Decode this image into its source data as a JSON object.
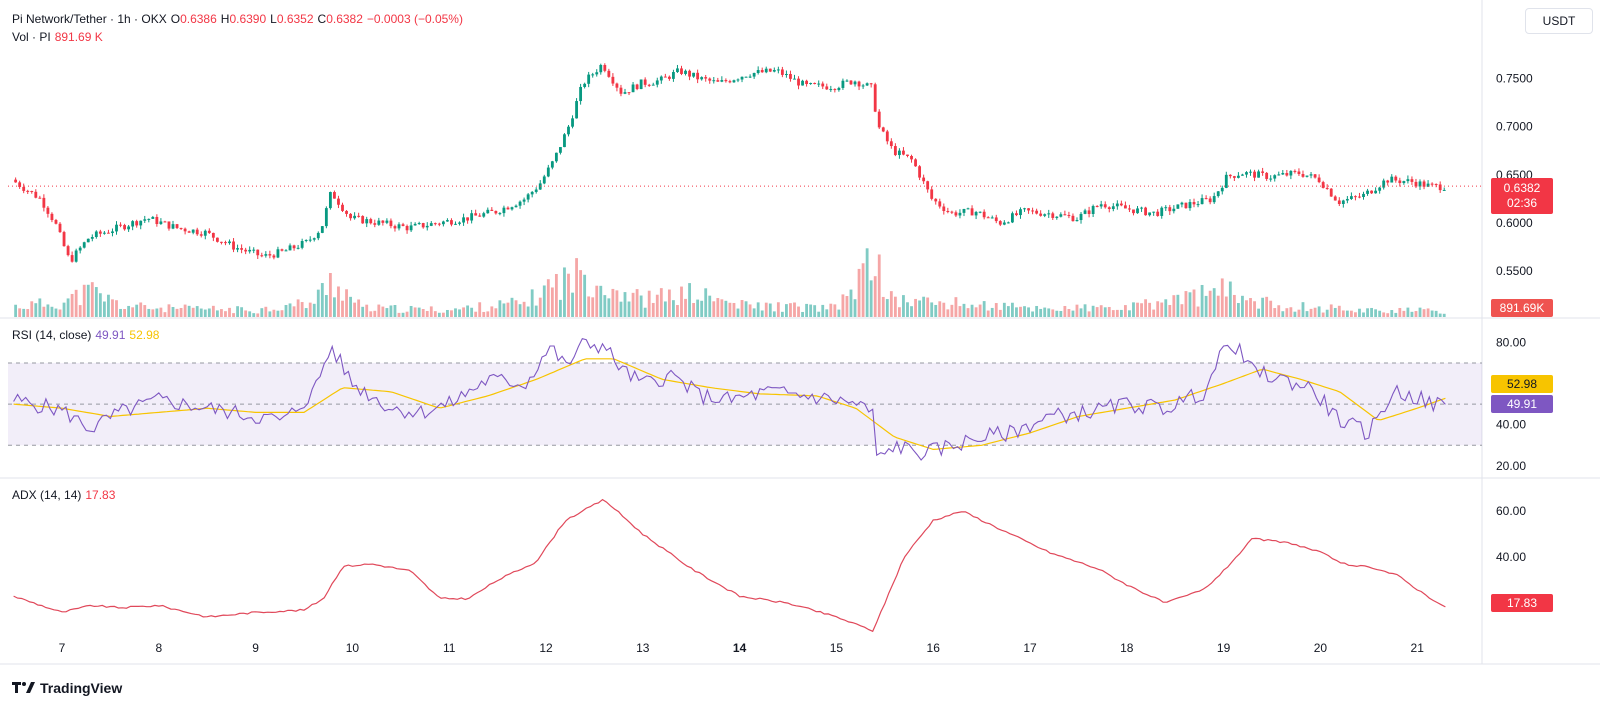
{
  "header": {
    "symbol": "Pi Network/Tether · 1h · OKX",
    "open_label": "O",
    "open": "0.6386",
    "high_label": "H",
    "high": "0.6390",
    "low_label": "L",
    "low": "0.6352",
    "close_label": "C",
    "close": "0.6382",
    "change": "−0.0003 (−0.05%)",
    "vol_label": "Vol · PI",
    "vol_value": "891.69 K"
  },
  "currency_button": "USDT",
  "price_tag": {
    "price": "0.6382",
    "countdown": "02:36"
  },
  "volume_tag": "891.69K",
  "rsi": {
    "label": "RSI (14, close)",
    "value": "49.91",
    "ma_value": "52.98"
  },
  "adx": {
    "label": "ADX (14, 14)",
    "value": "17.83"
  },
  "colors": {
    "up": "#089981",
    "down": "#f23645",
    "rsi": "#7e57c2",
    "rsi_ma": "#f7c400",
    "adx": "#e0485a"
  },
  "brand": "TradingView",
  "chart_data": [
    {
      "type": "candlestick",
      "title": "Pi Network/Tether · 1h · OKX",
      "x_ticks": [
        "7",
        "8",
        "9",
        "10",
        "11",
        "12",
        "13",
        "14",
        "15",
        "16",
        "17",
        "18",
        "19",
        "20",
        "21"
      ],
      "bold_ticks": [
        "14"
      ],
      "y_ticks": [
        "0.5500",
        "0.6000",
        "0.6500",
        "0.7000",
        "0.7500"
      ],
      "ylim": [
        0.52,
        0.79
      ],
      "price_path": [
        [
          6.5,
          0.645
        ],
        [
          6.8,
          0.625
        ],
        [
          6.95,
          0.6
        ],
        [
          7.1,
          0.56
        ],
        [
          7.3,
          0.585
        ],
        [
          7.6,
          0.595
        ],
        [
          7.9,
          0.605
        ],
        [
          8.2,
          0.595
        ],
        [
          8.5,
          0.59
        ],
        [
          8.8,
          0.575
        ],
        [
          9.1,
          0.565
        ],
        [
          9.3,
          0.57
        ],
        [
          9.55,
          0.58
        ],
        [
          9.7,
          0.595
        ],
        [
          9.8,
          0.632
        ],
        [
          10.0,
          0.605
        ],
        [
          10.3,
          0.6
        ],
        [
          10.6,
          0.595
        ],
        [
          10.9,
          0.6
        ],
        [
          11.2,
          0.605
        ],
        [
          11.5,
          0.612
        ],
        [
          11.8,
          0.625
        ],
        [
          11.95,
          0.64
        ],
        [
          12.1,
          0.665
        ],
        [
          12.25,
          0.7
        ],
        [
          12.4,
          0.745
        ],
        [
          12.6,
          0.765
        ],
        [
          12.8,
          0.735
        ],
        [
          13.0,
          0.745
        ],
        [
          13.2,
          0.748
        ],
        [
          13.4,
          0.758
        ],
        [
          13.6,
          0.75
        ],
        [
          13.8,
          0.745
        ],
        [
          14.1,
          0.755
        ],
        [
          14.4,
          0.758
        ],
        [
          14.7,
          0.742
        ],
        [
          15.0,
          0.742
        ],
        [
          15.2,
          0.748
        ],
        [
          15.38,
          0.74
        ],
        [
          15.45,
          0.7
        ],
        [
          15.6,
          0.675
        ],
        [
          15.8,
          0.665
        ],
        [
          16.0,
          0.625
        ],
        [
          16.2,
          0.61
        ],
        [
          16.45,
          0.612
        ],
        [
          16.7,
          0.6
        ],
        [
          16.95,
          0.612
        ],
        [
          17.2,
          0.61
        ],
        [
          17.5,
          0.605
        ],
        [
          17.75,
          0.62
        ],
        [
          18.0,
          0.615
        ],
        [
          18.3,
          0.61
        ],
        [
          18.6,
          0.618
        ],
        [
          18.9,
          0.625
        ],
        [
          19.05,
          0.648
        ],
        [
          19.2,
          0.652
        ],
        [
          19.5,
          0.648
        ],
        [
          19.8,
          0.652
        ],
        [
          20.0,
          0.645
        ],
        [
          20.2,
          0.622
        ],
        [
          20.45,
          0.628
        ],
        [
          20.7,
          0.645
        ],
        [
          20.95,
          0.643
        ],
        [
          21.15,
          0.638
        ],
        [
          21.3,
          0.638
        ]
      ],
      "volume_path": [
        [
          6.5,
          0.18
        ],
        [
          7.0,
          0.25
        ],
        [
          7.3,
          0.45
        ],
        [
          7.6,
          0.2
        ],
        [
          8.0,
          0.15
        ],
        [
          9.0,
          0.12
        ],
        [
          9.6,
          0.25
        ],
        [
          9.78,
          0.65
        ],
        [
          10.1,
          0.15
        ],
        [
          11.0,
          0.12
        ],
        [
          11.8,
          0.25
        ],
        [
          12.05,
          0.55
        ],
        [
          12.4,
          0.75
        ],
        [
          12.6,
          0.55
        ],
        [
          13.0,
          0.3
        ],
        [
          13.5,
          0.4
        ],
        [
          14.0,
          0.2
        ],
        [
          15.0,
          0.15
        ],
        [
          15.4,
          1.0
        ],
        [
          15.55,
          0.3
        ],
        [
          16.0,
          0.25
        ],
        [
          17.0,
          0.15
        ],
        [
          18.0,
          0.15
        ],
        [
          19.0,
          0.45
        ],
        [
          19.5,
          0.2
        ],
        [
          20.5,
          0.12
        ],
        [
          21.3,
          0.1
        ]
      ],
      "last_price": 0.6382
    },
    {
      "type": "line",
      "title": "RSI (14, close)",
      "y_ticks": [
        "20.00",
        "40.00",
        "80.00"
      ],
      "ylim": [
        18,
        86
      ],
      "bands": {
        "upper": 70,
        "middle": 50,
        "lower": 30
      },
      "series": [
        {
          "name": "RSI",
          "values": [
            [
              6.5,
              52
            ],
            [
              7.0,
              47
            ],
            [
              7.3,
              38
            ],
            [
              7.6,
              46
            ],
            [
              8.0,
              52
            ],
            [
              8.5,
              48
            ],
            [
              9.0,
              44
            ],
            [
              9.3,
              42
            ],
            [
              9.6,
              56
            ],
            [
              9.78,
              78
            ],
            [
              10.0,
              60
            ],
            [
              10.4,
              48
            ],
            [
              10.7,
              46
            ],
            [
              11.0,
              50
            ],
            [
              11.4,
              62
            ],
            [
              11.8,
              60
            ],
            [
              11.95,
              72
            ],
            [
              12.05,
              78
            ],
            [
              12.2,
              68
            ],
            [
              12.4,
              80
            ],
            [
              12.6,
              78
            ],
            [
              12.8,
              66
            ],
            [
              13.0,
              60
            ],
            [
              13.3,
              64
            ],
            [
              13.6,
              54
            ],
            [
              13.9,
              52
            ],
            [
              14.3,
              56
            ],
            [
              14.7,
              54
            ],
            [
              15.0,
              52
            ],
            [
              15.2,
              50
            ],
            [
              15.38,
              46
            ],
            [
              15.42,
              22
            ],
            [
              15.6,
              30
            ],
            [
              15.9,
              26
            ],
            [
              16.2,
              30
            ],
            [
              16.5,
              34
            ],
            [
              16.8,
              36
            ],
            [
              17.2,
              44
            ],
            [
              17.6,
              46
            ],
            [
              18.0,
              50
            ],
            [
              18.4,
              48
            ],
            [
              18.8,
              56
            ],
            [
              19.0,
              76
            ],
            [
              19.1,
              80
            ],
            [
              19.3,
              66
            ],
            [
              19.6,
              62
            ],
            [
              19.9,
              58
            ],
            [
              20.2,
              42
            ],
            [
              20.5,
              36
            ],
            [
              20.75,
              56
            ],
            [
              20.95,
              54
            ],
            [
              21.15,
              50
            ],
            [
              21.3,
              49.91
            ]
          ]
        },
        {
          "name": "RSI-based MA",
          "values": [
            [
              6.5,
              50
            ],
            [
              7.0,
              48
            ],
            [
              7.5,
              44
            ],
            [
              8.0,
              46
            ],
            [
              8.5,
              48
            ],
            [
              9.0,
              46
            ],
            [
              9.5,
              46
            ],
            [
              9.9,
              58
            ],
            [
              10.4,
              56
            ],
            [
              10.9,
              48
            ],
            [
              11.4,
              54
            ],
            [
              11.9,
              62
            ],
            [
              12.4,
              72
            ],
            [
              12.7,
              72
            ],
            [
              13.2,
              62
            ],
            [
              13.7,
              58
            ],
            [
              14.2,
              55
            ],
            [
              14.8,
              54
            ],
            [
              15.2,
              48
            ],
            [
              15.6,
              34
            ],
            [
              16.0,
              28
            ],
            [
              16.5,
              30
            ],
            [
              17.0,
              36
            ],
            [
              17.5,
              44
            ],
            [
              18.0,
              48
            ],
            [
              18.5,
              52
            ],
            [
              19.0,
              60
            ],
            [
              19.4,
              67
            ],
            [
              19.8,
              62
            ],
            [
              20.2,
              56
            ],
            [
              20.6,
              42
            ],
            [
              21.0,
              48
            ],
            [
              21.3,
              52.98
            ]
          ]
        }
      ]
    },
    {
      "type": "line",
      "title": "ADX (14, 14)",
      "y_ticks": [
        "40.00",
        "60.00"
      ],
      "ylim": [
        4,
        70
      ],
      "series": [
        {
          "name": "ADX",
          "values": [
            [
              6.5,
              23
            ],
            [
              7.0,
              16
            ],
            [
              7.3,
              19
            ],
            [
              7.6,
              18
            ],
            [
              8.0,
              19
            ],
            [
              8.5,
              14
            ],
            [
              9.0,
              16
            ],
            [
              9.5,
              17
            ],
            [
              9.7,
              22
            ],
            [
              9.9,
              36
            ],
            [
              10.2,
              37
            ],
            [
              10.6,
              34
            ],
            [
              10.9,
              22
            ],
            [
              11.2,
              22
            ],
            [
              11.5,
              30
            ],
            [
              11.9,
              38
            ],
            [
              12.2,
              56
            ],
            [
              12.6,
              65
            ],
            [
              13.0,
              50
            ],
            [
              13.5,
              35
            ],
            [
              14.0,
              23
            ],
            [
              14.5,
              20
            ],
            [
              15.0,
              14
            ],
            [
              15.38,
              8
            ],
            [
              15.7,
              40
            ],
            [
              16.0,
              56
            ],
            [
              16.3,
              60
            ],
            [
              16.7,
              52
            ],
            [
              17.2,
              42
            ],
            [
              17.7,
              35
            ],
            [
              18.0,
              28
            ],
            [
              18.4,
              20
            ],
            [
              18.8,
              26
            ],
            [
              19.0,
              34
            ],
            [
              19.3,
              48
            ],
            [
              19.7,
              46
            ],
            [
              20.0,
              42
            ],
            [
              20.3,
              36
            ],
            [
              20.5,
              36
            ],
            [
              20.8,
              32
            ],
            [
              21.0,
              26
            ],
            [
              21.3,
              17.83
            ]
          ]
        }
      ]
    }
  ]
}
